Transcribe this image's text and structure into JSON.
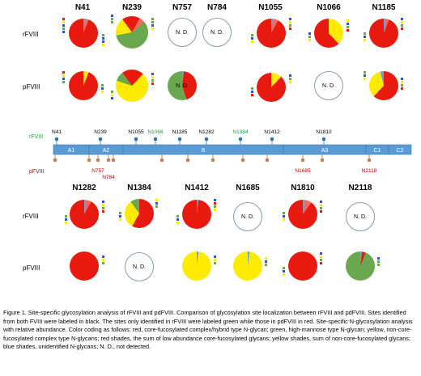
{
  "top_sites": [
    "N41",
    "N239",
    "N757",
    "N784",
    "N1055",
    "N1066",
    "N1185"
  ],
  "bottom_sites": [
    "N1282",
    "N1384",
    "N1412",
    "N1685",
    "N1810",
    "N2118"
  ],
  "row_labels": {
    "recombinant": "rFVIII",
    "plasma": "pFVIII"
  },
  "not_detected": "N. D.",
  "colors": {
    "red": "#e8190f",
    "green": "#6aa84f",
    "yellow": "#ffeb00",
    "blue": "#6fa0d6",
    "domain": "#5b9bd5"
  },
  "domain_map": {
    "domains": [
      "A1",
      "A2",
      "B",
      "A3",
      "C1",
      "C2"
    ],
    "top_sites": [
      {
        "label": "N41",
        "color": "black"
      },
      {
        "label": "N239",
        "color": "black"
      },
      {
        "label": "N1055",
        "color": "black"
      },
      {
        "label": "N1066",
        "color": "green"
      },
      {
        "label": "N1185",
        "color": "black"
      },
      {
        "label": "N1282",
        "color": "black"
      },
      {
        "label": "N1384",
        "color": "green"
      },
      {
        "label": "N1412",
        "color": "black"
      },
      {
        "label": "N1810",
        "color": "black"
      }
    ],
    "bottom_sites": [
      {
        "label": "N757",
        "color": "red"
      },
      {
        "label": "N784",
        "color": "red"
      },
      {
        "label": "N1685",
        "color": "red"
      },
      {
        "label": "N2118",
        "color": "red"
      }
    ]
  },
  "caption": "Figure 1. Site-specific glycosylation analysis of rFVIII and pdFVIII. Comparison of glycosylation site localization between rFVIII and pdFVIII. Sites identified from both FVIII were labeled in black. The sites only identified in rFVIII were labeled green while those in pdFVIII in red. Site-specific N-glycosylation analysis with relative abundance. Color coding as follows: red, core-fucosylated complex/hybrid type N-glycan; green, high-mannose type N-glycan; yellow, non-core-fucosylated complex type N-glycans; red shades, the sum of low abundance core-fucosylated glycans; yellow shades, sum of non-core-fucosylated glycans; blue shades, unidentified N-glycans; N. D., not detected."
}
